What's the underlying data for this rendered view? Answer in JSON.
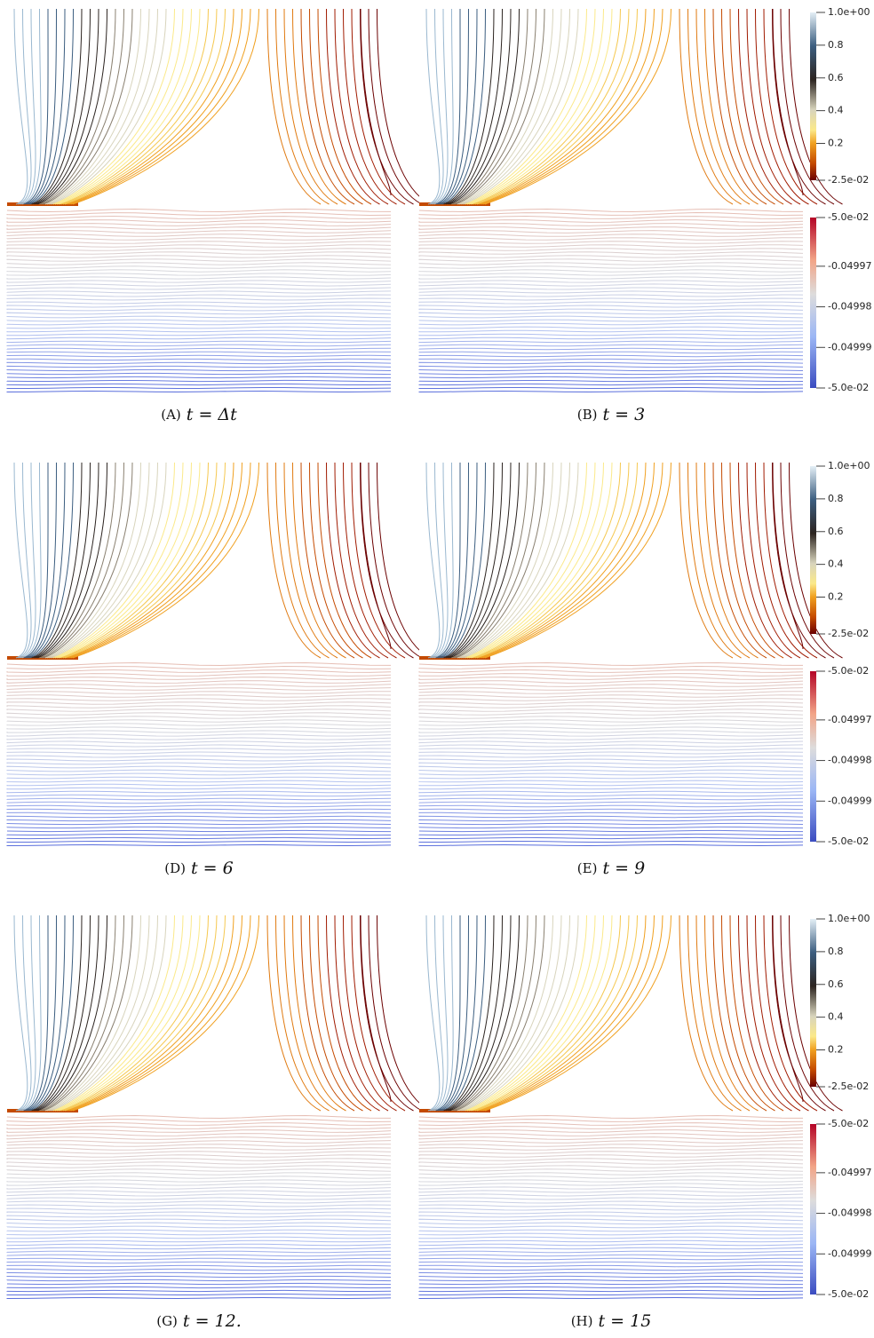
{
  "panels": [
    {
      "label": "(A)",
      "caption": "t = Δt"
    },
    {
      "label": "(B)",
      "caption": "t = 3"
    },
    {
      "label": "(D)",
      "caption": "t = 6"
    },
    {
      "label": "(E)",
      "caption": "t = 9"
    },
    {
      "label": "(G)",
      "caption": "t = 12."
    },
    {
      "label": "(H)",
      "caption": "t = 15"
    }
  ],
  "colorbars": {
    "upper": {
      "lim": [
        -0.025,
        1
      ],
      "ticks": [
        {
          "value": 1,
          "label": "1.0e+00"
        },
        0.8,
        0.6,
        0.4,
        0.2,
        {
          "value": -0.025,
          "label": "-2.5e-02"
        }
      ]
    },
    "lower": {
      "lim": [
        -0.05,
        -0.049958
      ],
      "ticks": [
        {
          "value": -0.049958,
          "label": "-5.0e-02"
        },
        -0.04997,
        -0.04998,
        -0.04999,
        {
          "value": -0.05,
          "label": "-5.0e-02"
        }
      ]
    }
  }
}
